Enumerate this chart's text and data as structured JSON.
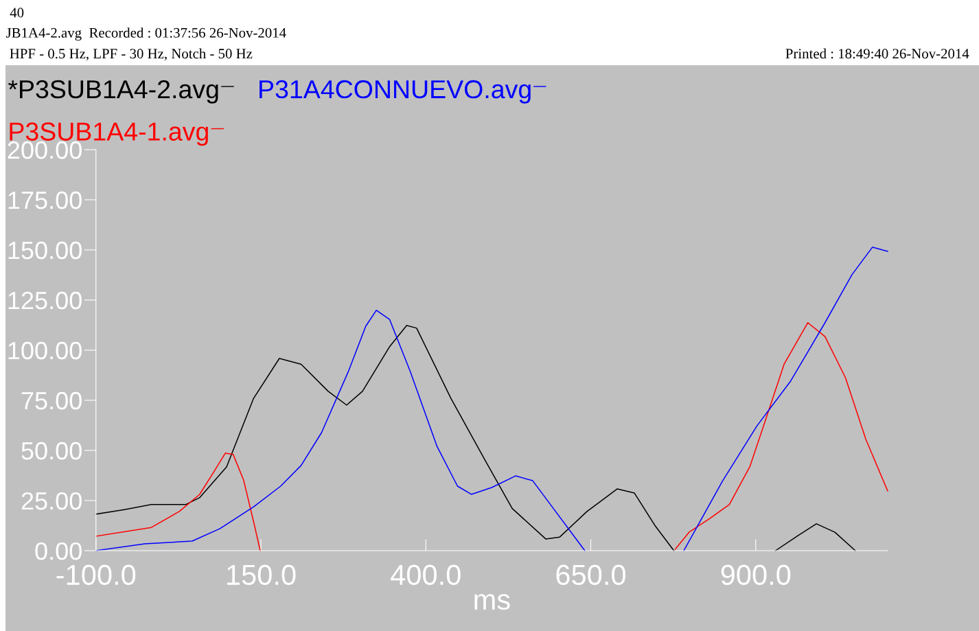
{
  "chart_data": {
    "type": "line",
    "annotations": [
      "40",
      "JB1A4-2.avg  Recorded : 01:37:56 26-Nov-2014",
      " HPF - 0.5 Hz, LPF - 30 Hz, Notch - 50 Hz",
      "Printed : 18:49:40 26-Nov-2014"
    ],
    "xlabel": "ms",
    "series": [
      {
        "name": "*P3SUB1A4-2.avg",
        "color": "#000000",
        "x": [
          -100,
          -57,
          -16,
          36,
          57,
          98,
          139,
          178,
          211,
          252,
          280,
          304,
          345,
          371,
          386,
          438,
          490,
          531,
          582,
          603,
          644,
          690,
          716,
          747,
          776,
          800,
          930,
          964,
          992,
          1020,
          1051
        ],
        "values": [
          18.2,
          20.5,
          23,
          23,
          26.4,
          41.8,
          76,
          95.9,
          93,
          79.5,
          72.6,
          79.5,
          101.7,
          112.3,
          111,
          76,
          45,
          21,
          5.8,
          6.8,
          19.5,
          30.8,
          28.8,
          12.7,
          0,
          null,
          0,
          7.5,
          13.4,
          9.2,
          0
        ]
      },
      {
        "name": "P3SUB1A4-1.avg",
        "color": "#ff0000",
        "x": [
          -100,
          -16,
          26,
          57,
          77,
          96,
          108,
          124,
          139,
          149,
          460,
          778,
          799,
          830,
          860,
          891,
          912,
          943,
          979,
          1005,
          1036,
          1067,
          1100
        ],
        "values": [
          7.2,
          11.6,
          19.5,
          28,
          38.4,
          48.6,
          48,
          35,
          14.4,
          0,
          null,
          0.7,
          9.2,
          16,
          23,
          41.8,
          62.3,
          93,
          113.7,
          106.8,
          86.3,
          55.5,
          29.8
        ]
      },
      {
        "name": "P31A4CONNUEVO.avg",
        "color": "#0000ff",
        "x": [
          -100,
          -26,
          46,
          88,
          139,
          180,
          211,
          242,
          283,
          309,
          325,
          345,
          376,
          417,
          448,
          469,
          500,
          536,
          562,
          593,
          641,
          700,
          791,
          850,
          902,
          953,
          1005,
          1046,
          1077,
          1100
        ],
        "values": [
          0,
          3.4,
          4.8,
          11,
          21.9,
          32.2,
          42.5,
          58.9,
          89.7,
          112,
          119.9,
          115.4,
          89.7,
          52,
          32.2,
          28.1,
          31.5,
          37.3,
          34.9,
          21.2,
          0,
          null,
          0,
          34.9,
          62.3,
          84.6,
          113.7,
          137.7,
          151.4,
          149.3
        ]
      }
    ],
    "xlim": [
      -100,
      1100
    ],
    "xticks": [
      {
        "value": -100,
        "label": "-100.0"
      },
      {
        "value": 150,
        "label": "150.0"
      },
      {
        "value": 400,
        "label": "400.0"
      },
      {
        "value": 650,
        "label": "650.0"
      },
      {
        "value": 900,
        "label": "900.0"
      }
    ],
    "ylim": [
      0,
      200
    ],
    "yticks": [
      {
        "value": 0,
        "label": "0.00"
      },
      {
        "value": 25,
        "label": "25.00"
      },
      {
        "value": 50,
        "label": "50.00"
      },
      {
        "value": 75,
        "label": "75.00"
      },
      {
        "value": 100,
        "label": "100.00"
      },
      {
        "value": 125,
        "label": "125.00"
      },
      {
        "value": 150,
        "label": "150.00"
      },
      {
        "value": 175,
        "label": "175.00"
      },
      {
        "value": 200,
        "label": "200.00"
      }
    ],
    "legend": "top left",
    "grid": false,
    "line_style": "solid",
    "marker": "none"
  }
}
